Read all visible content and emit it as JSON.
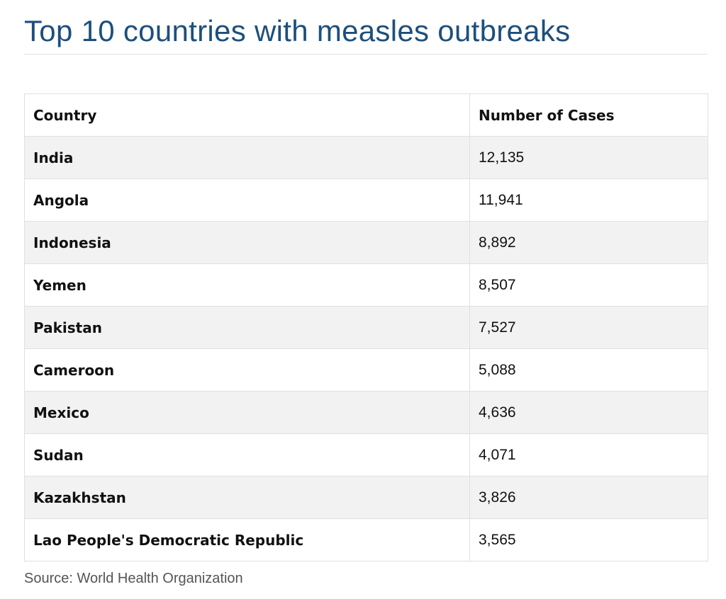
{
  "header": {
    "title": "Top 10 countries with measles outbreaks"
  },
  "table": {
    "columns": [
      "Country",
      "Number of Cases"
    ],
    "rows": [
      [
        "India",
        "12,135"
      ],
      [
        "Angola",
        "11,941"
      ],
      [
        "Indonesia",
        "8,892"
      ],
      [
        "Yemen",
        "8,507"
      ],
      [
        "Pakistan",
        "7,527"
      ],
      [
        "Cameroon",
        "5,088"
      ],
      [
        "Mexico",
        "4,636"
      ],
      [
        "Sudan",
        "4,071"
      ],
      [
        "Kazakhstan",
        "3,826"
      ],
      [
        "Lao People's Democratic Republic",
        "3,565"
      ]
    ]
  },
  "footer": {
    "source": "Source: World Health Organization"
  }
}
